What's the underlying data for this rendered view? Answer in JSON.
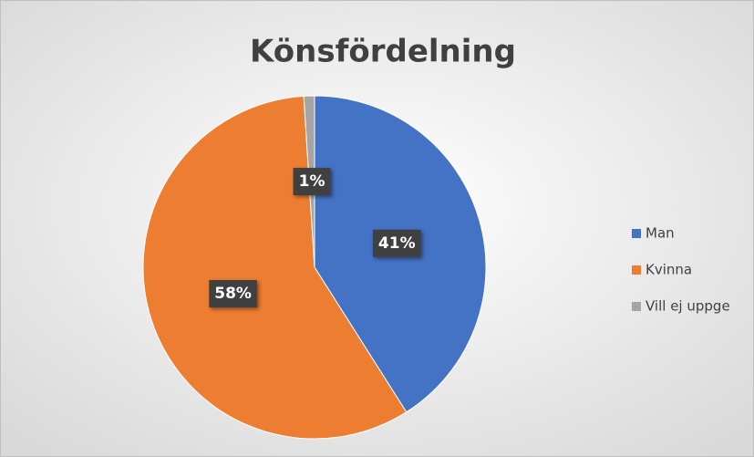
{
  "chart_data": {
    "type": "pie",
    "title": "Könsfördelning",
    "categories": [
      "Man",
      "Kvinna",
      "Vill ej uppge"
    ],
    "values": [
      41,
      58,
      1
    ],
    "value_labels": [
      "41%",
      "58%",
      "1%"
    ],
    "colors": [
      "#4472c4",
      "#ed7d31",
      "#a5a5a5"
    ],
    "legend": "right"
  }
}
